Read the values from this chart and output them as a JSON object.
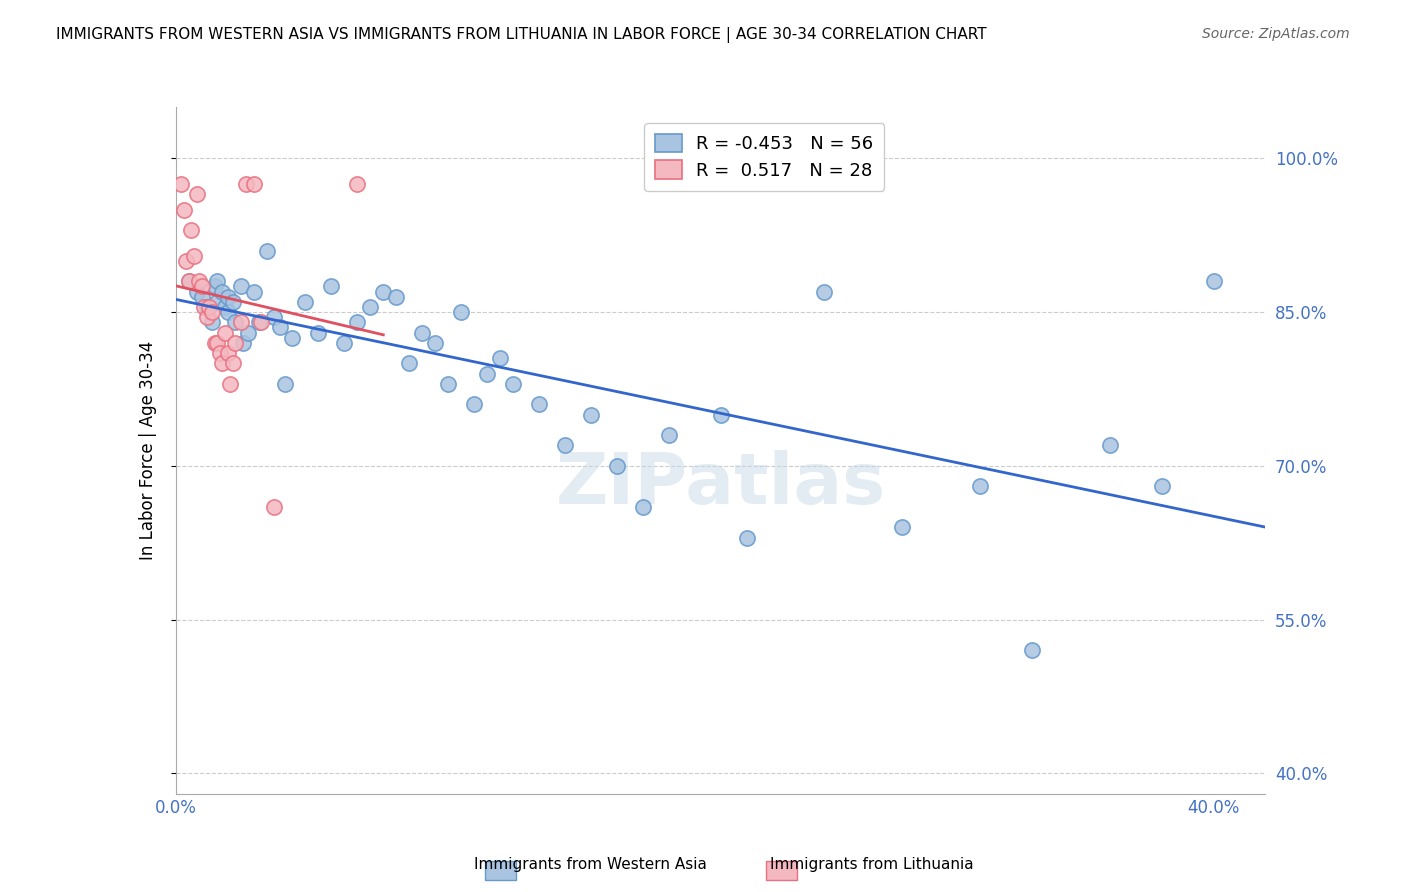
{
  "title": "IMMIGRANTS FROM WESTERN ASIA VS IMMIGRANTS FROM LITHUANIA IN LABOR FORCE | AGE 30-34 CORRELATION CHART",
  "source": "Source: ZipAtlas.com",
  "ylabel": "In Labor Force | Age 30-34",
  "y_ticks": [
    0.4,
    0.55,
    0.7,
    0.85,
    1.0
  ],
  "y_tick_labels": [
    "40.0%",
    "55.0%",
    "70.0%",
    "85.0%",
    "100.0%"
  ],
  "xlim": [
    0.0,
    0.42
  ],
  "ylim": [
    0.38,
    1.05
  ],
  "legend_blue_r": "-0.453",
  "legend_blue_n": "56",
  "legend_pink_r": "0.517",
  "legend_pink_n": "28",
  "legend_label_blue": "Immigrants from Western Asia",
  "legend_label_pink": "Immigrants from Lithuania",
  "blue_color": "#a8c4e0",
  "blue_edge_color": "#6699cc",
  "pink_color": "#f4b8c0",
  "pink_edge_color": "#e87080",
  "blue_line_color": "#3366cc",
  "pink_line_color": "#e05060",
  "watermark": "ZIPatlas",
  "blue_x": [
    0.005,
    0.008,
    0.01,
    0.012,
    0.014,
    0.015,
    0.016,
    0.016,
    0.018,
    0.019,
    0.02,
    0.02,
    0.022,
    0.023,
    0.025,
    0.026,
    0.028,
    0.03,
    0.032,
    0.035,
    0.038,
    0.04,
    0.042,
    0.045,
    0.05,
    0.055,
    0.06,
    0.065,
    0.07,
    0.075,
    0.08,
    0.085,
    0.09,
    0.095,
    0.1,
    0.105,
    0.11,
    0.115,
    0.12,
    0.125,
    0.13,
    0.14,
    0.15,
    0.16,
    0.17,
    0.18,
    0.19,
    0.21,
    0.22,
    0.25,
    0.28,
    0.31,
    0.33,
    0.36,
    0.38,
    0.4
  ],
  "blue_y": [
    0.88,
    0.87,
    0.865,
    0.855,
    0.84,
    0.875,
    0.88,
    0.86,
    0.87,
    0.855,
    0.865,
    0.85,
    0.86,
    0.84,
    0.875,
    0.82,
    0.83,
    0.87,
    0.84,
    0.91,
    0.845,
    0.835,
    0.78,
    0.825,
    0.86,
    0.83,
    0.875,
    0.82,
    0.84,
    0.855,
    0.87,
    0.865,
    0.8,
    0.83,
    0.82,
    0.78,
    0.85,
    0.76,
    0.79,
    0.805,
    0.78,
    0.76,
    0.72,
    0.75,
    0.7,
    0.66,
    0.73,
    0.75,
    0.63,
    0.87,
    0.64,
    0.68,
    0.52,
    0.72,
    0.68,
    0.88
  ],
  "pink_x": [
    0.002,
    0.003,
    0.004,
    0.005,
    0.006,
    0.007,
    0.008,
    0.009,
    0.01,
    0.011,
    0.012,
    0.013,
    0.014,
    0.015,
    0.016,
    0.017,
    0.018,
    0.019,
    0.02,
    0.021,
    0.022,
    0.023,
    0.025,
    0.027,
    0.03,
    0.033,
    0.038,
    0.07
  ],
  "pink_y": [
    0.975,
    0.95,
    0.9,
    0.88,
    0.93,
    0.905,
    0.965,
    0.88,
    0.875,
    0.855,
    0.845,
    0.855,
    0.85,
    0.82,
    0.82,
    0.81,
    0.8,
    0.83,
    0.81,
    0.78,
    0.8,
    0.82,
    0.84,
    0.975,
    0.975,
    0.84,
    0.66,
    0.975
  ]
}
